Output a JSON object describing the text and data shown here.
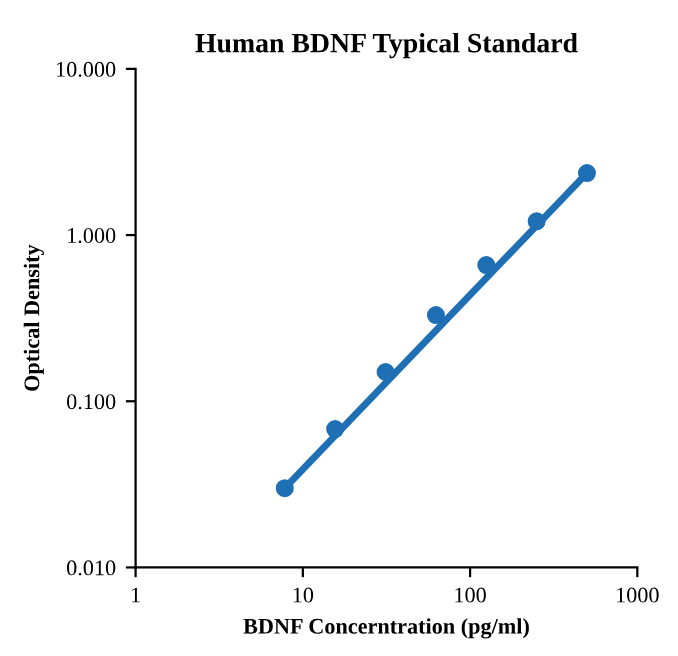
{
  "chart_data": {
    "type": "scatter",
    "title": "Human BDNF Typical Standard",
    "xlabel": "BDNF Concerntration (pg/ml)",
    "ylabel": "Optical Density",
    "log": "xy",
    "xlim": [
      1,
      1000
    ],
    "ylim": [
      0.01,
      10
    ],
    "xticks": [
      1,
      10,
      100,
      1000
    ],
    "yticks": [
      {
        "value": 0.01,
        "label": "0.010"
      },
      {
        "value": 0.1,
        "label": "0.100"
      },
      {
        "value": 1,
        "label": "1.000"
      },
      {
        "value": 10,
        "label": "10.000"
      }
    ],
    "grid": false,
    "legend": false,
    "series": [
      {
        "color": "#1f6fb4",
        "marker": "circle",
        "x": [
          7.8,
          15.6,
          31.25,
          62.5,
          125,
          250,
          500
        ],
        "values": [
          0.03,
          0.068,
          0.15,
          0.33,
          0.66,
          1.21,
          2.36
        ]
      },
      {
        "type": "line",
        "color": "#1f6fb4",
        "line_style": "solid",
        "x": [
          7.8,
          500
        ],
        "values": [
          0.03,
          2.36
        ]
      }
    ]
  }
}
